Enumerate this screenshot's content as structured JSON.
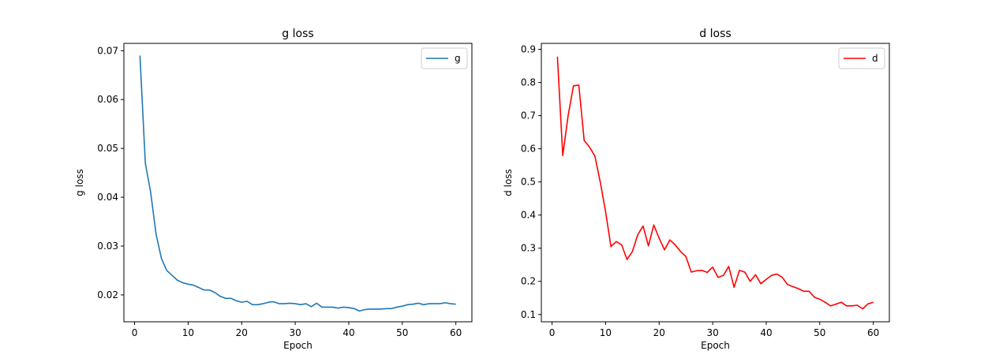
{
  "chart_data": [
    {
      "type": "line",
      "title": "g loss",
      "xlabel": "Epoch",
      "ylabel": "g loss",
      "xlim": [
        -2,
        63
      ],
      "ylim": [
        0.0145,
        0.0715
      ],
      "xticks": [
        0,
        10,
        20,
        30,
        40,
        50,
        60
      ],
      "yticks": [
        0.02,
        0.03,
        0.04,
        0.05,
        0.06,
        0.07
      ],
      "ytick_labels": [
        "0.02",
        "0.03",
        "0.04",
        "0.05",
        "0.06",
        "0.07"
      ],
      "legend": "top-right",
      "grid": false,
      "series": [
        {
          "name": "g",
          "color": "#1f77b4",
          "x": [
            1,
            2,
            3,
            4,
            5,
            6,
            7,
            8,
            9,
            10,
            11,
            12,
            13,
            14,
            15,
            16,
            17,
            18,
            19,
            20,
            21,
            22,
            23,
            24,
            25,
            26,
            27,
            28,
            29,
            30,
            31,
            32,
            33,
            34,
            35,
            36,
            37,
            38,
            39,
            40,
            41,
            42,
            43,
            44,
            45,
            46,
            47,
            48,
            49,
            50,
            51,
            52,
            53,
            54,
            55,
            56,
            57,
            58,
            59,
            60
          ],
          "y": [
            0.069,
            0.047,
            0.041,
            0.0325,
            0.0275,
            0.025,
            0.024,
            0.023,
            0.0225,
            0.0222,
            0.022,
            0.0215,
            0.021,
            0.021,
            0.0205,
            0.0197,
            0.0193,
            0.0193,
            0.0188,
            0.0185,
            0.0187,
            0.018,
            0.018,
            0.0182,
            0.0185,
            0.0186,
            0.0182,
            0.0182,
            0.0183,
            0.0182,
            0.018,
            0.0182,
            0.0176,
            0.0183,
            0.0175,
            0.0175,
            0.0175,
            0.0173,
            0.0175,
            0.0174,
            0.0172,
            0.0167,
            0.017,
            0.0171,
            0.0171,
            0.0171,
            0.0172,
            0.0172,
            0.0175,
            0.0177,
            0.018,
            0.0181,
            0.0183,
            0.018,
            0.0182,
            0.0182,
            0.0182,
            0.0184,
            0.0182,
            0.0181
          ]
        }
      ]
    },
    {
      "type": "line",
      "title": "d loss",
      "xlabel": "Epoch",
      "ylabel": "d loss",
      "xlim": [
        -2,
        63
      ],
      "ylim": [
        0.078,
        0.918
      ],
      "xticks": [
        0,
        10,
        20,
        30,
        40,
        50,
        60
      ],
      "yticks": [
        0.1,
        0.2,
        0.3,
        0.4,
        0.5,
        0.6,
        0.7,
        0.8,
        0.9
      ],
      "ytick_labels": [
        "0.1",
        "0.2",
        "0.3",
        "0.4",
        "0.5",
        "0.6",
        "0.7",
        "0.8",
        "0.9"
      ],
      "legend": "top-right",
      "grid": false,
      "series": [
        {
          "name": "d",
          "color": "#ff0000",
          "x": [
            1,
            2,
            3,
            4,
            5,
            6,
            7,
            8,
            9,
            10,
            11,
            12,
            13,
            14,
            15,
            16,
            17,
            18,
            19,
            20,
            21,
            22,
            23,
            24,
            25,
            26,
            27,
            28,
            29,
            30,
            31,
            32,
            33,
            34,
            35,
            36,
            37,
            38,
            39,
            40,
            41,
            42,
            43,
            44,
            45,
            46,
            47,
            48,
            49,
            50,
            51,
            52,
            53,
            54,
            55,
            56,
            57,
            58,
            59,
            60
          ],
          "y": [
            0.878,
            0.58,
            0.7,
            0.79,
            0.792,
            0.625,
            0.605,
            0.578,
            0.5,
            0.41,
            0.305,
            0.32,
            0.31,
            0.266,
            0.29,
            0.34,
            0.367,
            0.307,
            0.37,
            0.33,
            0.295,
            0.325,
            0.31,
            0.29,
            0.275,
            0.228,
            0.232,
            0.233,
            0.227,
            0.243,
            0.212,
            0.218,
            0.245,
            0.182,
            0.233,
            0.228,
            0.2,
            0.22,
            0.193,
            0.206,
            0.218,
            0.222,
            0.212,
            0.19,
            0.184,
            0.178,
            0.17,
            0.17,
            0.152,
            0.146,
            0.137,
            0.126,
            0.131,
            0.137,
            0.126,
            0.126,
            0.128,
            0.117,
            0.132,
            0.137
          ]
        }
      ]
    }
  ]
}
